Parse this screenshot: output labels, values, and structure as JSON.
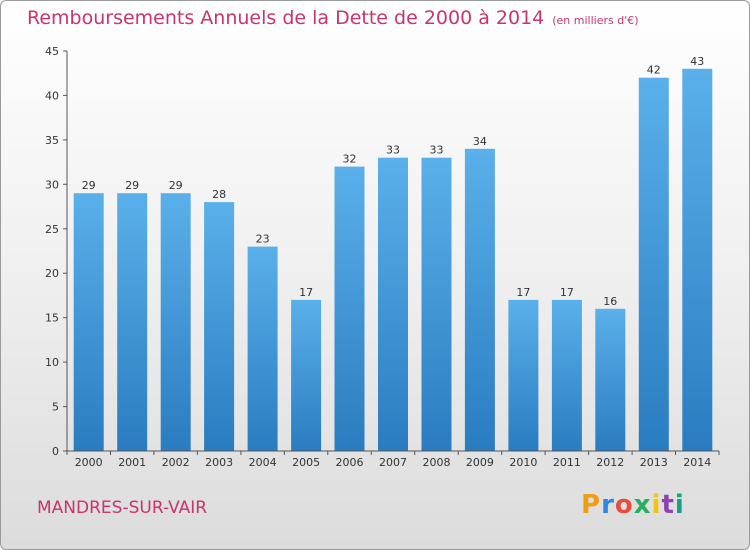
{
  "chart_data": {
    "type": "bar",
    "title": "Remboursements Annuels de la Dette de 2000 à 2014",
    "subtitle": "(en milliers d'€)",
    "categories": [
      "2000",
      "2001",
      "2002",
      "2003",
      "2004",
      "2005",
      "2006",
      "2007",
      "2008",
      "2009",
      "2010",
      "2011",
      "2012",
      "2013",
      "2014"
    ],
    "values": [
      29,
      29,
      29,
      28,
      23,
      17,
      32,
      33,
      33,
      34,
      17,
      17,
      16,
      42,
      43
    ],
    "ylim": [
      0,
      45
    ],
    "yticks": [
      0,
      5,
      10,
      15,
      20,
      25,
      30,
      35,
      40,
      45
    ],
    "grid": false,
    "bar_color": "#4da6e6",
    "bar_color_dark": "#2a7cc0"
  },
  "footer": {
    "place": "MANDRES-SUR-VAIR",
    "logo_letters": [
      "P",
      "r",
      "o",
      "x",
      "i",
      "t",
      "i"
    ],
    "logo_colors": [
      "#f39c12",
      "#2e86de",
      "#e74c3c",
      "#27ae60",
      "#f1c40f",
      "#8e44ad",
      "#16a085"
    ]
  },
  "colors": {
    "title": "#c8346f",
    "axis": "#333333"
  }
}
